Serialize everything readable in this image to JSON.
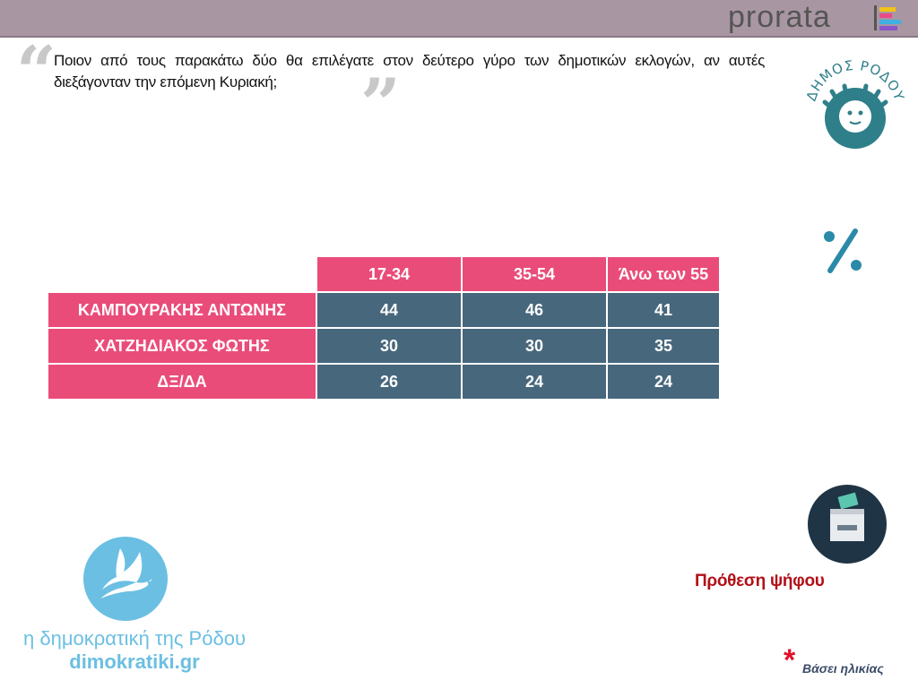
{
  "brand": {
    "name": "prorata"
  },
  "question": "Ποιον από τους παρακάτω δύο θα επιλέγατε στον δεύτερο γύρο των δημοτικών εκλογών, αν αυτές διεξάγονταν την επόμενη Κυριακή;",
  "logo_dimos": {
    "text": "ΔΗΜΟΣ ΡΟΔΟΥ"
  },
  "icons": {
    "percent": "percent-icon",
    "ballot": "ballot-box-icon",
    "dove": "dove-icon"
  },
  "colors": {
    "header": "#ea4c79",
    "cell": "#47677c",
    "topbar": "#a996a3",
    "accent_red": "#b31018",
    "logo_blue": "#6bbfe2"
  },
  "chart_data": {
    "type": "table",
    "columns": [
      "17-34",
      "35-54",
      "Άνω των 55"
    ],
    "rows": [
      {
        "label": "ΚΑΜΠΟΥΡΑΚΗΣ ΑΝΤΩΝΗΣ",
        "values": [
          44,
          46,
          41
        ]
      },
      {
        "label": "ΧΑΤΖΗΔΙΑΚΟΣ ΦΩΤΗΣ",
        "values": [
          30,
          30,
          35
        ]
      },
      {
        "label": "ΔΞ/ΔΑ",
        "values": [
          26,
          24,
          24
        ]
      }
    ]
  },
  "section_label": "Πρόθεση ψήφου",
  "footer": {
    "site_name": "η δημοκρατική της Ρόδου",
    "site_url": "dimokratiki.gr",
    "asterisk": "*",
    "note": "Βάσει ηλικίας"
  }
}
